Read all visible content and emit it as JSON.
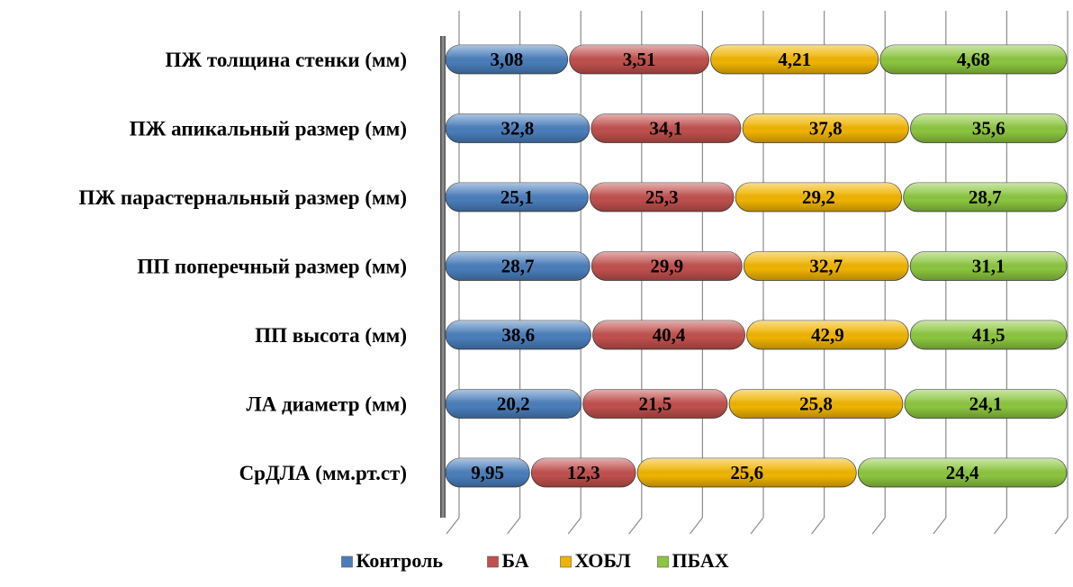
{
  "chart_data": {
    "type": "bar",
    "orientation": "horizontal",
    "stacked": "percent",
    "categories": [
      "ПЖ толщина стенки (мм)",
      "ПЖ апикальный размер (мм)",
      "ПЖ парастернальный размер (мм)",
      "ПП поперечный размер (мм)",
      "ПП высота (мм)",
      "ЛА диаметр (мм)",
      "СрДЛА (мм.рт.ст)"
    ],
    "series": [
      {
        "name": "Контроль",
        "color": "#4a7ebb",
        "values": [
          3.08,
          32.8,
          25.1,
          28.7,
          38.6,
          20.2,
          9.95
        ],
        "labels": [
          "3,08",
          "32,8",
          "25,1",
          "28,7",
          "38,6",
          "20,2",
          "9,95"
        ]
      },
      {
        "name": "БА",
        "color": "#c0504d",
        "values": [
          3.51,
          34.1,
          25.3,
          29.9,
          40.4,
          21.5,
          12.3
        ],
        "labels": [
          "3,51",
          "34,1",
          "25,3",
          "29,9",
          "40,4",
          "21,5",
          "12,3"
        ]
      },
      {
        "name": "ХОБЛ",
        "color": "#f0b400",
        "values": [
          4.21,
          37.8,
          29.2,
          32.7,
          42.9,
          25.8,
          25.6
        ],
        "labels": [
          "4,21",
          "37,8",
          "29,2",
          "32,7",
          "42,9",
          "25,8",
          "25,6"
        ]
      },
      {
        "name": "ПБАХ",
        "color": "#8cc63f",
        "values": [
          4.68,
          35.6,
          28.7,
          31.1,
          41.5,
          24.1,
          24.4
        ],
        "labels": [
          "4,68",
          "35,6",
          "28,7",
          "31,1",
          "41,5",
          "24,1",
          "24,4"
        ]
      }
    ],
    "title": "",
    "xlabel": "",
    "ylabel": "",
    "grid": true,
    "legend": "bottom"
  }
}
